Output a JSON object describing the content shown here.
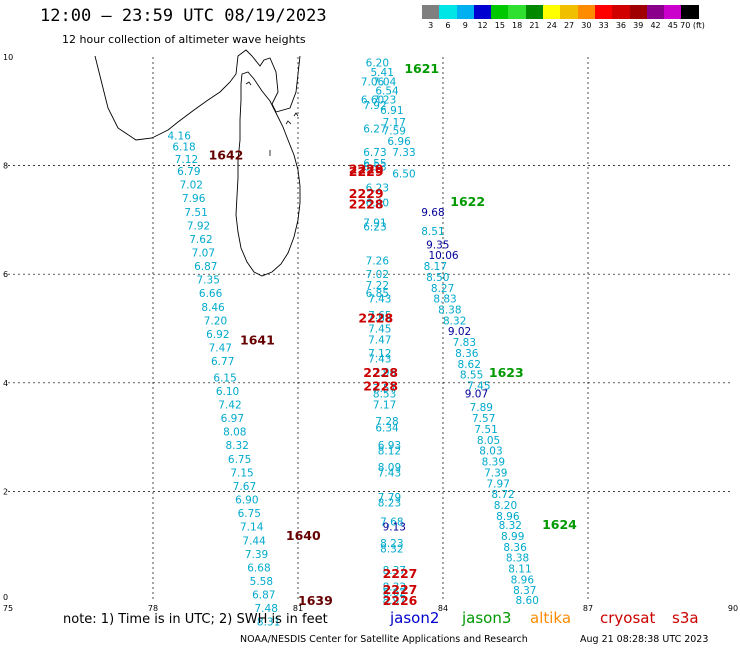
{
  "header": {
    "title": "12:00 — 23:59 UTC 08/19/2023",
    "subtitle": "12 hour collection of altimeter wave heights"
  },
  "scale": {
    "labels": [
      "3",
      "6",
      "9",
      "12",
      "15",
      "18",
      "21",
      "24",
      "27",
      "30",
      "33",
      "36",
      "39",
      "42",
      "45",
      "70 (ft)"
    ],
    "colors": [
      "#7f7f7f",
      "#00e5e5",
      "#00b0f0",
      "#0000d0",
      "#00c800",
      "#30e030",
      "#008800",
      "#ffff00",
      "#f0c000",
      "#ff8c00",
      "#ff0000",
      "#d00000",
      "#a00000",
      "#8b008b",
      "#cc00cc",
      "#000000"
    ]
  },
  "map": {
    "lon_range": [
      75,
      90
    ],
    "lat_range": [
      0,
      10
    ],
    "x_ticks": [
      "75",
      "78",
      "81",
      "84",
      "87",
      "90"
    ],
    "y_ticks": [
      "0",
      "2",
      "4",
      "6",
      "8",
      "10"
    ],
    "gridline_lons": [
      78,
      81,
      84,
      87
    ],
    "gridline_lats": [
      2,
      4,
      6,
      8
    ],
    "coast_color": "#000000"
  },
  "palette": {
    "jason2": "#0000cc",
    "jason3": "#009900",
    "altika": "#ff8c00",
    "cryosat": "#cc0000",
    "s3a": "#cc0000",
    "cyan_value": "#00aacc",
    "navy_value": "#000099",
    "dark_red_label": "#660000"
  },
  "track_labels": [
    {
      "text": "1621",
      "lon": 83.2,
      "lat": 9.8,
      "sat": "jason3"
    },
    {
      "text": "1622",
      "lon": 84.15,
      "lat": 7.35,
      "sat": "jason3"
    },
    {
      "text": "1623",
      "lon": 84.95,
      "lat": 4.2,
      "sat": "jason3"
    },
    {
      "text": "1624",
      "lon": 86.05,
      "lat": 1.4,
      "sat": "jason3"
    },
    {
      "text": "1642",
      "lon": 79.15,
      "lat": 8.2,
      "sat": "dark_red_label"
    },
    {
      "text": "1641",
      "lon": 79.8,
      "lat": 4.8,
      "sat": "dark_red_label"
    },
    {
      "text": "1640",
      "lon": 80.75,
      "lat": 1.2,
      "sat": "dark_red_label"
    },
    {
      "text": "1639",
      "lon": 81.0,
      "lat": 0.0,
      "sat": "dark_red_label"
    },
    {
      "text": "2229",
      "lon": 82.05,
      "lat": 7.95,
      "sat": "cryosat"
    },
    {
      "text": "2229",
      "lon": 82.05,
      "lat": 7.9,
      "sat": "cryosat"
    },
    {
      "text": "2229",
      "lon": 82.05,
      "lat": 7.5,
      "sat": "cryosat"
    },
    {
      "text": "2228",
      "lon": 82.05,
      "lat": 7.3,
      "sat": "cryosat"
    },
    {
      "text": "2228",
      "lon": 82.25,
      "lat": 5.2,
      "sat": "cryosat"
    },
    {
      "text": "2228",
      "lon": 82.35,
      "lat": 4.2,
      "sat": "cryosat"
    },
    {
      "text": "2228",
      "lon": 82.35,
      "lat": 3.95,
      "sat": "cryosat"
    },
    {
      "text": "2227",
      "lon": 82.75,
      "lat": 0.5,
      "sat": "cryosat"
    },
    {
      "text": "2227",
      "lon": 82.75,
      "lat": 0.2,
      "sat": "cryosat"
    },
    {
      "text": "2226",
      "lon": 82.75,
      "lat": 0.0,
      "sat": "cryosat"
    }
  ],
  "track_a": [
    {
      "v": "4.16",
      "lon": 78.3,
      "lat": 8.55
    },
    {
      "v": "6.18",
      "lon": 78.4,
      "lat": 8.35
    },
    {
      "v": "7.12",
      "lon": 78.45,
      "lat": 8.12
    },
    {
      "v": "6.79",
      "lon": 78.5,
      "lat": 7.9
    },
    {
      "v": "7.02",
      "lon": 78.55,
      "lat": 7.65
    },
    {
      "v": "7.96",
      "lon": 78.6,
      "lat": 7.4
    },
    {
      "v": "7.51",
      "lon": 78.65,
      "lat": 7.15
    },
    {
      "v": "7.92",
      "lon": 78.7,
      "lat": 6.9
    },
    {
      "v": "7.62",
      "lon": 78.75,
      "lat": 6.65
    },
    {
      "v": "7.07",
      "lon": 78.8,
      "lat": 6.4
    },
    {
      "v": "6.87",
      "lon": 78.85,
      "lat": 6.15
    },
    {
      "v": "7.35",
      "lon": 78.9,
      "lat": 5.9
    },
    {
      "v": "6.66",
      "lon": 78.95,
      "lat": 5.65
    },
    {
      "v": "8.46",
      "lon": 79.0,
      "lat": 5.4
    },
    {
      "v": "7.20",
      "lon": 79.05,
      "lat": 5.15
    },
    {
      "v": "6.92",
      "lon": 79.1,
      "lat": 4.9
    },
    {
      "v": "7.47",
      "lon": 79.15,
      "lat": 4.65
    },
    {
      "v": "6.77",
      "lon": 79.2,
      "lat": 4.4
    },
    {
      "v": "6.15",
      "lon": 79.25,
      "lat": 4.1
    },
    {
      "v": "6.10",
      "lon": 79.3,
      "lat": 3.85
    },
    {
      "v": "7.42",
      "lon": 79.35,
      "lat": 3.6
    },
    {
      "v": "6.97",
      "lon": 79.4,
      "lat": 3.35
    },
    {
      "v": "8.08",
      "lon": 79.45,
      "lat": 3.1
    },
    {
      "v": "8.32",
      "lon": 79.5,
      "lat": 2.85
    },
    {
      "v": "6.75",
      "lon": 79.55,
      "lat": 2.6
    },
    {
      "v": "7.15",
      "lon": 79.6,
      "lat": 2.35
    },
    {
      "v": "7.67",
      "lon": 79.65,
      "lat": 2.1
    },
    {
      "v": "6.90",
      "lon": 79.7,
      "lat": 1.85
    },
    {
      "v": "6.75",
      "lon": 79.75,
      "lat": 1.6
    },
    {
      "v": "7.14",
      "lon": 79.8,
      "lat": 1.35
    },
    {
      "v": "7.44",
      "lon": 79.85,
      "lat": 1.1
    },
    {
      "v": "7.39",
      "lon": 79.9,
      "lat": 0.85
    },
    {
      "v": "6.68",
      "lon": 79.95,
      "lat": 0.6
    },
    {
      "v": "5.58",
      "lon": 80.0,
      "lat": 0.35
    },
    {
      "v": "6.87",
      "lon": 80.05,
      "lat": 0.1
    },
    {
      "v": "7.48",
      "lon": 80.1,
      "lat": -0.15
    },
    {
      "v": "8.31",
      "lon": 80.15,
      "lat": -0.4
    }
  ],
  "track_b": [
    {
      "v": "6.20",
      "lon": 82.4,
      "lat": 9.9
    },
    {
      "v": "5.41",
      "lon": 82.5,
      "lat": 9.72
    },
    {
      "v": "7.06",
      "lon": 82.3,
      "lat": 9.55
    },
    {
      "v": "7.04",
      "lon": 82.55,
      "lat": 9.55
    },
    {
      "v": "6.54",
      "lon": 82.6,
      "lat": 9.38
    },
    {
      "v": "6.60",
      "lon": 82.3,
      "lat": 9.22
    },
    {
      "v": "7.23",
      "lon": 82.55,
      "lat": 9.22
    },
    {
      "v": "7.92",
      "lon": 82.35,
      "lat": 9.12
    },
    {
      "v": "6.91",
      "lon": 82.7,
      "lat": 9.02
    },
    {
      "v": "7.17",
      "lon": 82.75,
      "lat": 8.8
    },
    {
      "v": "6.27",
      "lon": 82.35,
      "lat": 8.68
    },
    {
      "v": "7.59",
      "lon": 82.75,
      "lat": 8.65
    },
    {
      "v": "6.96",
      "lon": 82.85,
      "lat": 8.45
    },
    {
      "v": "6.73",
      "lon": 82.35,
      "lat": 8.25
    },
    {
      "v": "7.33",
      "lon": 82.95,
      "lat": 8.25
    },
    {
      "v": "6.55",
      "lon": 82.35,
      "lat": 8.05
    },
    {
      "v": "6.53",
      "lon": 82.35,
      "lat": 7.98
    },
    {
      "v": "6.50",
      "lon": 82.95,
      "lat": 7.85
    },
    {
      "v": "6.23",
      "lon": 82.4,
      "lat": 7.6
    },
    {
      "v": "6.40",
      "lon": 82.4,
      "lat": 7.32
    },
    {
      "v": "7.91",
      "lon": 82.35,
      "lat": 6.95
    },
    {
      "v": "6.23",
      "lon": 82.35,
      "lat": 6.88
    },
    {
      "v": "7.26",
      "lon": 82.4,
      "lat": 6.25
    },
    {
      "v": "7.02",
      "lon": 82.4,
      "lat": 6.0
    },
    {
      "v": "7.22",
      "lon": 82.4,
      "lat": 5.8
    },
    {
      "v": "6.85",
      "lon": 82.4,
      "lat": 5.65
    },
    {
      "v": "7.43",
      "lon": 82.45,
      "lat": 5.55
    },
    {
      "v": "7.65",
      "lon": 82.45,
      "lat": 5.25
    },
    {
      "v": "7.88",
      "lon": 82.45,
      "lat": 5.2
    },
    {
      "v": "7.45",
      "lon": 82.45,
      "lat": 5.0
    },
    {
      "v": "7.47",
      "lon": 82.45,
      "lat": 4.8
    },
    {
      "v": "7.12",
      "lon": 82.45,
      "lat": 4.55
    },
    {
      "v": "7.43",
      "lon": 82.45,
      "lat": 4.45
    },
    {
      "v": "7.96",
      "lon": 82.55,
      "lat": 4.2
    },
    {
      "v": "7.57",
      "lon": 82.55,
      "lat": 3.9
    },
    {
      "v": "8.53",
      "lon": 82.55,
      "lat": 3.8
    },
    {
      "v": "7.17",
      "lon": 82.55,
      "lat": 3.6
    },
    {
      "v": "7.28",
      "lon": 82.6,
      "lat": 3.3
    },
    {
      "v": "6.34",
      "lon": 82.6,
      "lat": 3.18
    },
    {
      "v": "6.93",
      "lon": 82.65,
      "lat": 2.85
    },
    {
      "v": "8.12",
      "lon": 82.65,
      "lat": 2.75
    },
    {
      "v": "8.09",
      "lon": 82.65,
      "lat": 2.45
    },
    {
      "v": "7.43",
      "lon": 82.65,
      "lat": 2.35
    },
    {
      "v": "7.79",
      "lon": 82.65,
      "lat": 1.9
    },
    {
      "v": "8.23",
      "lon": 82.65,
      "lat": 1.8
    },
    {
      "v": "7.68",
      "lon": 82.7,
      "lat": 1.45
    },
    {
      "v": "8.23",
      "lon": 82.7,
      "lat": 1.05
    },
    {
      "v": "8.32",
      "lon": 82.7,
      "lat": 0.95
    },
    {
      "v": "8.37",
      "lon": 82.75,
      "lat": 0.55
    },
    {
      "v": "8.33",
      "lon": 82.75,
      "lat": 0.25
    },
    {
      "v": "8.62",
      "lon": 82.75,
      "lat": 0.15
    },
    {
      "v": "8.97",
      "lon": 82.75,
      "lat": 0.0
    }
  ],
  "track_c": [
    {
      "v": "9.68",
      "lon": 83.55,
      "lat": 7.15
    },
    {
      "v": "9.35",
      "lon": 83.65,
      "lat": 6.55
    },
    {
      "v": "10.06",
      "lon": 83.7,
      "lat": 6.35
    },
    {
      "v": "9.02",
      "lon": 84.1,
      "lat": 4.95
    },
    {
      "v": "9.07",
      "lon": 84.45,
      "lat": 3.8
    },
    {
      "v": "9.13",
      "lon": 82.75,
      "lat": 1.35
    }
  ],
  "track_d": [
    {
      "v": "8.51",
      "lon": 83.55,
      "lat": 6.8
    },
    {
      "v": "8.17",
      "lon": 83.6,
      "lat": 6.15
    },
    {
      "v": "8.50",
      "lon": 83.65,
      "lat": 5.95
    },
    {
      "v": "8.27",
      "lon": 83.75,
      "lat": 5.75
    },
    {
      "v": "8.83",
      "lon": 83.8,
      "lat": 5.55
    },
    {
      "v": "8.38",
      "lon": 83.9,
      "lat": 5.35
    },
    {
      "v": "8.32",
      "lon": 84.0,
      "lat": 5.15
    },
    {
      "v": "7.83",
      "lon": 84.2,
      "lat": 4.75
    },
    {
      "v": "8.36",
      "lon": 84.25,
      "lat": 4.55
    },
    {
      "v": "8.62",
      "lon": 84.3,
      "lat": 4.35
    },
    {
      "v": "8.55",
      "lon": 84.35,
      "lat": 4.15
    },
    {
      "v": "7.45",
      "lon": 84.5,
      "lat": 3.95
    },
    {
      "v": "7.89",
      "lon": 84.55,
      "lat": 3.55
    },
    {
      "v": "7.57",
      "lon": 84.6,
      "lat": 3.35
    },
    {
      "v": "7.51",
      "lon": 84.65,
      "lat": 3.15
    },
    {
      "v": "8.05",
      "lon": 84.7,
      "lat": 2.95
    },
    {
      "v": "8.03",
      "lon": 84.75,
      "lat": 2.75
    },
    {
      "v": "8.39",
      "lon": 84.8,
      "lat": 2.55
    },
    {
      "v": "7.39",
      "lon": 84.85,
      "lat": 2.35
    },
    {
      "v": "7.97",
      "lon": 84.9,
      "lat": 2.15
    },
    {
      "v": "8.72",
      "lon": 85.0,
      "lat": 1.95
    },
    {
      "v": "8.20",
      "lon": 85.05,
      "lat": 1.75
    },
    {
      "v": "8.96",
      "lon": 85.1,
      "lat": 1.55
    },
    {
      "v": "8.32",
      "lon": 85.15,
      "lat": 1.38
    },
    {
      "v": "8.99",
      "lon": 85.2,
      "lat": 1.18
    },
    {
      "v": "8.36",
      "lon": 85.25,
      "lat": 0.98
    },
    {
      "v": "8.38",
      "lon": 85.3,
      "lat": 0.78
    },
    {
      "v": "8.11",
      "lon": 85.35,
      "lat": 0.58
    },
    {
      "v": "8.96",
      "lon": 85.4,
      "lat": 0.38
    },
    {
      "v": "8.37",
      "lon": 85.45,
      "lat": 0.18
    },
    {
      "v": "8.60",
      "lon": 85.5,
      "lat": 0.0
    }
  ],
  "footer": {
    "note": "note:  1) Time is in UTC;  2) SWH is in feet",
    "legend": [
      {
        "name": "jason2",
        "color": "#0000cc"
      },
      {
        "name": "jason3",
        "color": "#009900"
      },
      {
        "name": "altika",
        "color": "#ff8c00"
      },
      {
        "name": "cryosat",
        "color": "#cc0000"
      },
      {
        "name": "s3a",
        "color": "#cc0000"
      }
    ],
    "credit": "NOAA/NESDIS Center for Satellite Applications and Research",
    "datestamp": "Aug 21 08:28:38 UTC 2023"
  }
}
